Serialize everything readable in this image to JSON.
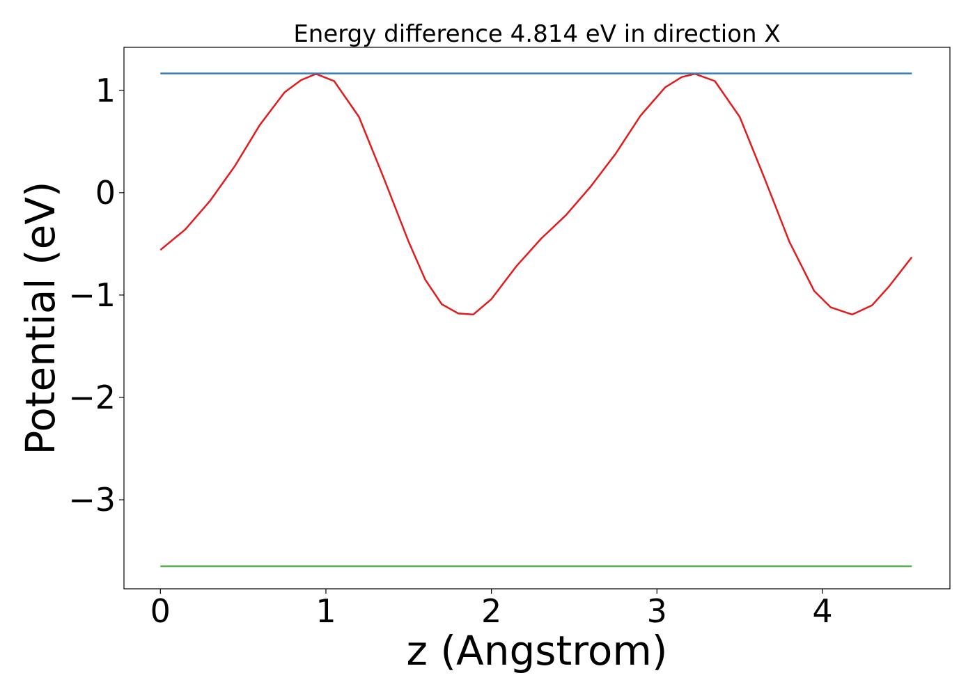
{
  "chart_data": {
    "type": "line",
    "title": "Energy difference 4.814 eV in direction X",
    "xlabel": "z (Angstrom)",
    "ylabel": "Potential (eV)",
    "xlim": [
      -0.22,
      4.77
    ],
    "ylim": [
      -3.87,
      1.42
    ],
    "xticks": [
      0,
      1,
      2,
      3,
      4
    ],
    "xtick_labels": [
      "0",
      "1",
      "2",
      "3",
      "4"
    ],
    "yticks": [
      1,
      0,
      -1,
      -2,
      -3
    ],
    "ytick_labels": [
      "1",
      "0",
      "−1",
      "−2",
      "−3"
    ],
    "grid": false,
    "legend": "none",
    "series": [
      {
        "color": "#e41a1c",
        "x": [
          0.0,
          0.15,
          0.3,
          0.45,
          0.6,
          0.75,
          0.85,
          0.94,
          1.05,
          1.2,
          1.35,
          1.5,
          1.6,
          1.7,
          1.8,
          1.89,
          2.0,
          2.15,
          2.3,
          2.45,
          2.6,
          2.75,
          2.9,
          3.05,
          3.15,
          3.23,
          3.35,
          3.5,
          3.65,
          3.8,
          3.95,
          4.05,
          4.18,
          4.3,
          4.4,
          4.54
        ],
        "y": [
          -0.56,
          -0.36,
          -0.08,
          0.26,
          0.66,
          0.98,
          1.1,
          1.16,
          1.09,
          0.74,
          0.14,
          -0.48,
          -0.85,
          -1.09,
          -1.18,
          -1.19,
          -1.04,
          -0.72,
          -0.45,
          -0.22,
          0.06,
          0.38,
          0.75,
          1.03,
          1.13,
          1.16,
          1.09,
          0.74,
          0.14,
          -0.48,
          -0.96,
          -1.12,
          -1.19,
          -1.1,
          -0.92,
          -0.63
        ]
      },
      {
        "color": "#377eb8",
        "x": [
          0.0,
          4.54
        ],
        "y": [
          1.165,
          1.165
        ]
      },
      {
        "color": "#4daf4a",
        "x": [
          0.0,
          4.54
        ],
        "y": [
          -3.65,
          -3.65
        ]
      }
    ]
  }
}
